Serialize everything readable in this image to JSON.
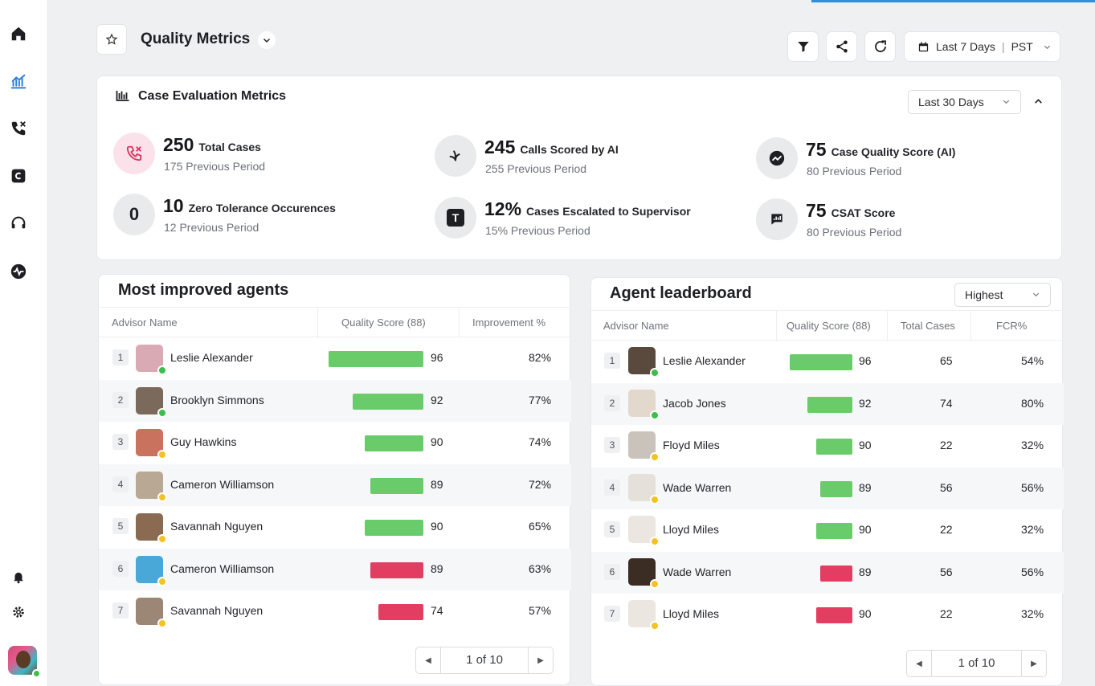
{
  "colors": {
    "accent": "#2f8fd8",
    "green_bar": "#6acb6a",
    "red_bar": "#e33e62",
    "online": "#3cbf4a",
    "away": "#f4c224"
  },
  "header": {
    "title": "Quality Metrics",
    "date_range": "Last 7 Days",
    "timezone": "PST"
  },
  "sidebar": {
    "items": [
      "home-icon",
      "analytics-icon",
      "phone-icon",
      "c-app-icon",
      "headset-icon",
      "pulse-icon"
    ],
    "bottom": [
      "bell-icon",
      "gear-icon",
      "avatar"
    ]
  },
  "metrics": {
    "title": "Case Evaluation Metrics",
    "range": "Last 30 Days",
    "items": [
      {
        "value": "250",
        "label": "Total Cases",
        "sub": "175 Previous Period",
        "icon": "phone-missed-icon"
      },
      {
        "value": "245",
        "label": "Calls Scored by AI",
        "sub": "255 Previous Period",
        "icon": "sparkle-icon"
      },
      {
        "value": "75",
        "label": "Case Quality Score (AI)",
        "sub": "80 Previous Period",
        "icon": "gauge-icon"
      },
      {
        "value": "10",
        "label": "Zero Tolerance Occurences",
        "sub": "12 Previous Period",
        "icon_text": "0"
      },
      {
        "value": "12%",
        "label": "Cases Escalated to Supervisor",
        "sub": "15% Previous Period",
        "icon_text": "T"
      },
      {
        "value": "75",
        "label": "CSAT Score",
        "sub": "80 Previous Period",
        "icon": "bar-chart-icon"
      }
    ]
  },
  "improved": {
    "title": "Most improved agents",
    "columns": [
      "Advisor Name",
      "Quality Score (88)",
      "Improvement %"
    ],
    "rows": [
      {
        "rank": "1",
        "name": "Leslie Alexander",
        "score": "96",
        "improvement": "82%",
        "status": "online",
        "bar": "green",
        "av": "#d9a9b4"
      },
      {
        "rank": "2",
        "name": "Brooklyn Simmons",
        "score": "92",
        "improvement": "77%",
        "status": "online",
        "bar": "green",
        "av": "#7b6a5c"
      },
      {
        "rank": "3",
        "name": "Guy Hawkins",
        "score": "90",
        "improvement": "74%",
        "status": "away",
        "bar": "green",
        "av": "#c9735f"
      },
      {
        "rank": "4",
        "name": "Cameron Williamson",
        "score": "89",
        "improvement": "72%",
        "status": "away",
        "bar": "green",
        "av": "#b9a894"
      },
      {
        "rank": "5",
        "name": "Savannah Nguyen",
        "score": "90",
        "improvement": "65%",
        "status": "away",
        "bar": "green",
        "av": "#8b6a52"
      },
      {
        "rank": "6",
        "name": "Cameron Williamson",
        "score": "89",
        "improvement": "63%",
        "status": "away",
        "bar": "red",
        "av": "#4aa8d8"
      },
      {
        "rank": "7",
        "name": "Savannah Nguyen",
        "score": "74",
        "improvement": "57%",
        "status": "away",
        "bar": "red",
        "av": "#9c8676"
      }
    ],
    "pager": "1 of 10"
  },
  "leaderboard": {
    "title": "Agent leaderboard",
    "sort": "Highest",
    "columns": [
      "Advisor Name",
      "Quality Score (88)",
      "Total Cases",
      "FCR%"
    ],
    "rows": [
      {
        "rank": "1",
        "name": "Leslie Alexander",
        "score": "96",
        "cases": "65",
        "fcr": "54%",
        "status": "online",
        "bar": "green",
        "av": "#5a4a3e"
      },
      {
        "rank": "2",
        "name": "Jacob Jones",
        "score": "92",
        "cases": "74",
        "fcr": "80%",
        "status": "online",
        "bar": "green",
        "av": "#e2d8cc"
      },
      {
        "rank": "3",
        "name": "Floyd Miles",
        "score": "90",
        "cases": "22",
        "fcr": "32%",
        "status": "away",
        "bar": "green",
        "av": "#c9c3bb"
      },
      {
        "rank": "4",
        "name": "Wade Warren",
        "score": "89",
        "cases": "56",
        "fcr": "56%",
        "status": "away",
        "bar": "green",
        "av": "#e6e0da"
      },
      {
        "rank": "5",
        "name": "Lloyd Miles",
        "score": "90",
        "cases": "22",
        "fcr": "32%",
        "status": "away",
        "bar": "green",
        "av": "#ebe6e0"
      },
      {
        "rank": "6",
        "name": "Wade Warren",
        "score": "89",
        "cases": "56",
        "fcr": "56%",
        "status": "away",
        "bar": "red",
        "av": "#3b2c24"
      },
      {
        "rank": "7",
        "name": "Lloyd Miles",
        "score": "90",
        "cases": "22",
        "fcr": "32%",
        "status": "away",
        "bar": "red",
        "av": "#ebe6e0"
      }
    ],
    "pager": "1 of 10"
  }
}
